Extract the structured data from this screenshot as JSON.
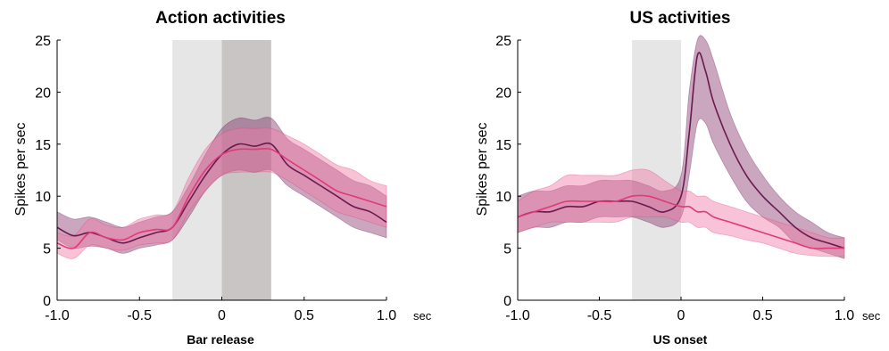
{
  "chart_data": [
    {
      "type": "line",
      "title": "Action activities",
      "xlabel": "Bar release",
      "ylabel": "Spikes per sec",
      "x_unit": "sec",
      "xlim": [
        -1.0,
        1.0
      ],
      "ylim": [
        0,
        25
      ],
      "xticks": [
        "-1.0",
        "-0.5",
        "0",
        "0.5",
        "1.0"
      ],
      "yticks": [
        "0",
        "5",
        "10",
        "15",
        "20",
        "25"
      ],
      "shaded_windows": [
        {
          "from": -0.3,
          "to": 0.0,
          "color": "#e6e6e6"
        },
        {
          "from": 0.0,
          "to": 0.3,
          "color": "#c9c5c5"
        }
      ],
      "x": [
        -1.0,
        -0.9,
        -0.8,
        -0.7,
        -0.6,
        -0.5,
        -0.4,
        -0.3,
        -0.2,
        -0.1,
        0.0,
        0.1,
        0.2,
        0.3,
        0.4,
        0.5,
        0.6,
        0.7,
        0.8,
        0.9,
        1.0
      ],
      "series": [
        {
          "color": "#6b1a4f",
          "band_color": "#8a3a72",
          "values": [
            7.0,
            6.2,
            6.5,
            6.0,
            5.5,
            6.0,
            6.5,
            7.0,
            9.5,
            12.0,
            14.0,
            15.0,
            14.8,
            15.0,
            13.0,
            12.0,
            11.0,
            10.0,
            9.0,
            8.5,
            7.5
          ],
          "upper": [
            8.5,
            7.8,
            8.0,
            7.5,
            7.0,
            7.5,
            8.0,
            8.5,
            11.0,
            14.0,
            16.5,
            17.5,
            17.3,
            17.5,
            15.5,
            14.5,
            13.5,
            12.5,
            11.5,
            11.0,
            10.0
          ],
          "lower": [
            5.8,
            5.0,
            5.2,
            5.0,
            4.5,
            5.0,
            5.3,
            5.8,
            8.0,
            10.5,
            12.0,
            12.5,
            12.3,
            12.5,
            11.0,
            10.0,
            9.0,
            8.0,
            7.0,
            6.5,
            6.0
          ]
        },
        {
          "color": "#e03a78",
          "band_color": "#f07ba3",
          "values": [
            5.5,
            5.0,
            6.5,
            6.0,
            5.8,
            6.5,
            6.8,
            7.0,
            10.0,
            12.5,
            14.0,
            14.5,
            14.5,
            14.5,
            13.5,
            12.5,
            11.5,
            10.5,
            10.0,
            9.5,
            9.0
          ],
          "upper": [
            6.5,
            6.2,
            7.8,
            7.2,
            7.0,
            7.8,
            8.2,
            8.5,
            11.8,
            14.5,
            16.0,
            16.5,
            16.5,
            16.5,
            15.8,
            15.0,
            14.0,
            13.0,
            12.5,
            11.5,
            11.0
          ],
          "lower": [
            4.5,
            4.0,
            5.3,
            5.0,
            4.8,
            5.3,
            5.5,
            5.8,
            8.5,
            10.5,
            12.0,
            12.3,
            12.3,
            12.3,
            11.5,
            10.5,
            9.5,
            8.5,
            8.0,
            7.5,
            7.0
          ]
        }
      ]
    },
    {
      "type": "line",
      "title": "US activities",
      "xlabel": "US onset",
      "ylabel": "Spikes per sec",
      "x_unit": "sec",
      "xlim": [
        -1.0,
        1.0
      ],
      "ylim": [
        0,
        25
      ],
      "xticks": [
        "-1.0",
        "-0.5",
        "0",
        "0.5",
        "1.0"
      ],
      "yticks": [
        "0",
        "5",
        "10",
        "15",
        "20",
        "25"
      ],
      "shaded_windows": [
        {
          "from": -0.3,
          "to": 0.0,
          "color": "#e6e6e6"
        }
      ],
      "x": [
        -1.0,
        -0.9,
        -0.8,
        -0.7,
        -0.6,
        -0.5,
        -0.4,
        -0.3,
        -0.2,
        -0.1,
        0.0,
        0.05,
        0.1,
        0.15,
        0.2,
        0.3,
        0.4,
        0.5,
        0.6,
        0.7,
        0.8,
        0.9,
        1.0
      ],
      "series": [
        {
          "color": "#6b1a4f",
          "band_color": "#8a3a72",
          "values": [
            8.0,
            8.5,
            8.5,
            9.0,
            9.0,
            9.5,
            9.5,
            9.5,
            9.0,
            8.5,
            10.0,
            16.0,
            23.5,
            22.0,
            19.0,
            15.0,
            12.0,
            10.0,
            8.5,
            7.0,
            6.0,
            5.5,
            5.0
          ],
          "upper": [
            10.0,
            10.5,
            10.5,
            11.0,
            11.0,
            11.5,
            11.5,
            11.5,
            11.0,
            10.5,
            12.0,
            20.0,
            25.0,
            25.0,
            23.0,
            18.0,
            14.5,
            12.0,
            10.0,
            8.5,
            7.5,
            6.5,
            6.0
          ],
          "lower": [
            6.5,
            7.0,
            7.0,
            7.5,
            7.5,
            8.0,
            8.0,
            8.0,
            7.5,
            7.0,
            8.0,
            12.0,
            17.0,
            17.0,
            15.0,
            12.0,
            9.5,
            8.0,
            7.0,
            5.5,
            5.0,
            4.5,
            4.0
          ]
        },
        {
          "color": "#e03a78",
          "band_color": "#f07ba3",
          "values": [
            8.0,
            8.5,
            9.0,
            9.5,
            9.5,
            9.5,
            9.5,
            10.0,
            10.0,
            9.5,
            9.0,
            9.0,
            8.5,
            8.5,
            8.0,
            7.5,
            7.0,
            6.5,
            6.0,
            5.5,
            5.0,
            5.0,
            5.0
          ],
          "upper": [
            9.5,
            10.5,
            11.0,
            12.0,
            12.0,
            12.0,
            12.0,
            12.5,
            12.5,
            11.5,
            10.5,
            10.5,
            10.0,
            10.0,
            9.5,
            9.0,
            8.5,
            8.0,
            7.5,
            7.0,
            6.5,
            6.0,
            6.0
          ],
          "lower": [
            6.5,
            7.0,
            7.5,
            7.5,
            7.5,
            7.5,
            7.5,
            8.0,
            8.0,
            8.0,
            7.5,
            7.5,
            7.0,
            7.0,
            6.5,
            6.2,
            5.8,
            5.5,
            5.0,
            4.5,
            4.3,
            4.2,
            4.2
          ]
        }
      ]
    }
  ]
}
